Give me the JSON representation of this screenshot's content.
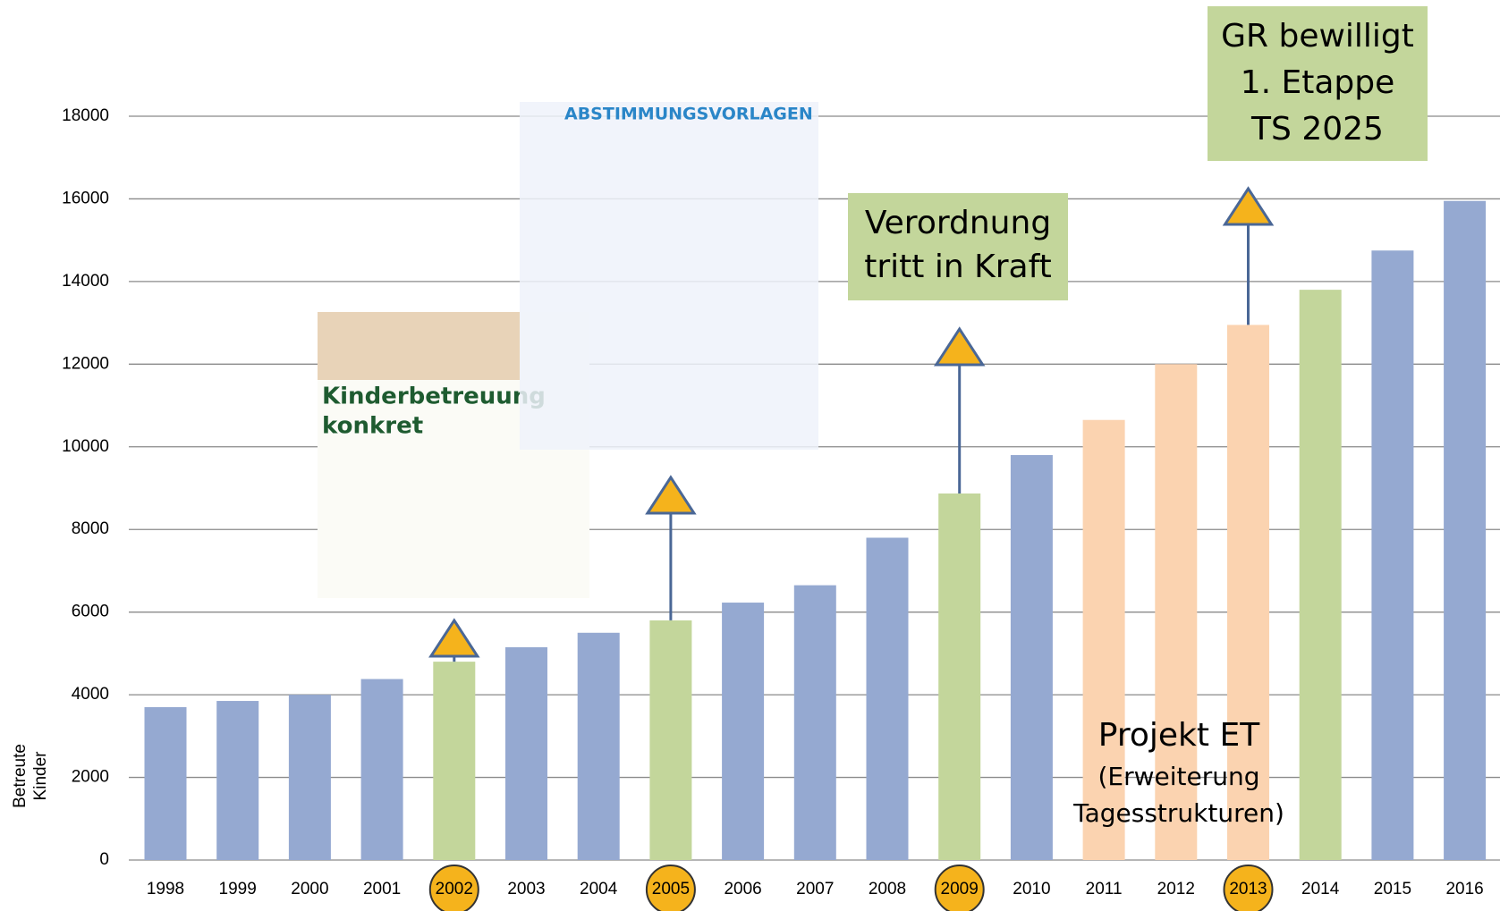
{
  "chart_data": {
    "type": "bar",
    "ylabel": [
      "Betreute",
      "Kinder"
    ],
    "categories": [
      "1998",
      "1999",
      "2000",
      "2001",
      "2002",
      "2003",
      "2004",
      "2005",
      "2006",
      "2007",
      "2008",
      "2009",
      "2010",
      "2011",
      "2012",
      "2013",
      "2014",
      "2015",
      "2016"
    ],
    "values": [
      3700,
      3850,
      4000,
      4380,
      4800,
      5150,
      5500,
      5800,
      6230,
      6650,
      7800,
      8870,
      9800,
      10650,
      12000,
      12950,
      13800,
      14750,
      15950
    ],
    "colors": [
      "#95a9d1",
      "#95a9d1",
      "#95a9d1",
      "#95a9d1",
      "#c3d69b",
      "#95a9d1",
      "#95a9d1",
      "#c3d69b",
      "#95a9d1",
      "#95a9d1",
      "#95a9d1",
      "#c3d69b",
      "#95a9d1",
      "#fbd3b0",
      "#fbd3b0",
      "#fbd3b0",
      "#c3d69b",
      "#95a9d1",
      "#95a9d1"
    ],
    "highlight": [
      4,
      7,
      11,
      15
    ],
    "highlight_color": "#f5b31c",
    "ylim": [
      0,
      18000
    ],
    "yticks": [
      0,
      2000,
      4000,
      6000,
      8000,
      10000,
      12000,
      14000,
      16000,
      18000
    ],
    "grid": true,
    "annotations": {
      "flyer_title": [
        "Kinderbetreuung",
        "konkret"
      ],
      "ballot_title": "ABSTIMMUNGSVORLAGEN",
      "ordinance": [
        "Verordnung",
        "tritt in Kraft"
      ],
      "approval": [
        "GR bewilligt",
        "1. Etappe",
        "TS 2025"
      ],
      "project": "Projekt ET",
      "project_note": [
        "(Erweiterung",
        "Tagesstrukturen)"
      ]
    }
  }
}
